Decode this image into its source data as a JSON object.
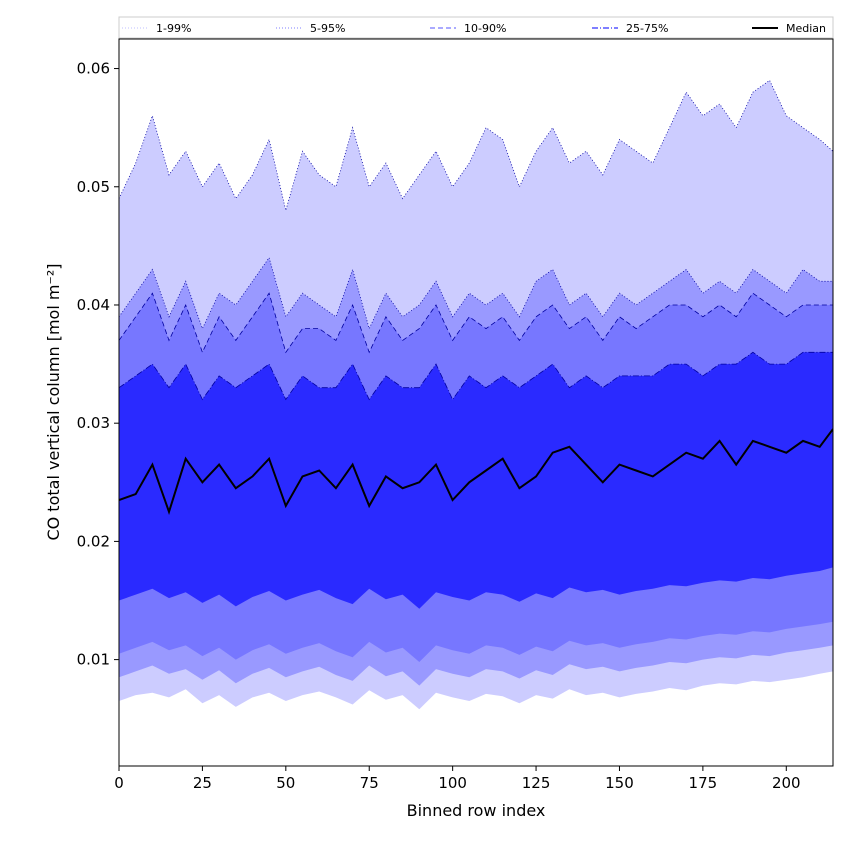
{
  "chart_data": {
    "type": "area",
    "title": "",
    "xlabel": "Binned row index",
    "ylabel": "CO total vertical column [mol m⁻²]",
    "xlim": [
      0,
      214
    ],
    "ylim": [
      0.001,
      0.0625
    ],
    "x_ticks": [
      0,
      25,
      50,
      75,
      100,
      125,
      150,
      175,
      200
    ],
    "x_tick_labels": [
      "0",
      "25",
      "50",
      "75",
      "100",
      "125",
      "150",
      "175",
      "200"
    ],
    "y_ticks": [
      0.01,
      0.02,
      0.03,
      0.04,
      0.05,
      0.06
    ],
    "y_tick_labels": [
      "0.01",
      "0.02",
      "0.03",
      "0.04",
      "0.05",
      "0.06"
    ],
    "legend_position": "top",
    "legend": [
      {
        "label": "1-99%",
        "style": "dotted-thin"
      },
      {
        "label": "5-95%",
        "style": "dotted"
      },
      {
        "label": "10-90%",
        "style": "dashed"
      },
      {
        "label": "25-75%",
        "style": "dash-dot"
      },
      {
        "label": "Median",
        "style": "solid-black"
      }
    ],
    "x_step": 5,
    "bands": [
      {
        "name": "1-99%",
        "color": "#ccccff",
        "lower": [
          0.0065,
          0.007,
          0.0072,
          0.0068,
          0.0075,
          0.0063,
          0.007,
          0.006,
          0.0068,
          0.0072,
          0.0065,
          0.007,
          0.0073,
          0.0068,
          0.0062,
          0.0074,
          0.0066,
          0.007,
          0.0058,
          0.0072,
          0.0068,
          0.0065,
          0.0071,
          0.0069,
          0.0063,
          0.007,
          0.0067,
          0.0075,
          0.007,
          0.0072,
          0.0068,
          0.0071,
          0.0073,
          0.0076,
          0.0074,
          0.0078,
          0.008,
          0.0079,
          0.0082,
          0.0081,
          0.0083,
          0.0085,
          0.0088,
          0.009
        ],
        "upper": [
          0.049,
          0.052,
          0.056,
          0.051,
          0.053,
          0.05,
          0.052,
          0.049,
          0.051,
          0.054,
          0.048,
          0.053,
          0.051,
          0.05,
          0.055,
          0.05,
          0.052,
          0.049,
          0.051,
          0.053,
          0.05,
          0.052,
          0.055,
          0.054,
          0.05,
          0.053,
          0.055,
          0.052,
          0.053,
          0.051,
          0.054,
          0.053,
          0.052,
          0.055,
          0.058,
          0.056,
          0.057,
          0.055,
          0.058,
          0.059,
          0.056,
          0.055,
          0.054,
          0.053
        ]
      },
      {
        "name": "5-95%",
        "color": "#9999ff",
        "lower": [
          0.0085,
          0.009,
          0.0095,
          0.0088,
          0.0092,
          0.0083,
          0.0091,
          0.008,
          0.0088,
          0.0093,
          0.0085,
          0.009,
          0.0094,
          0.0087,
          0.0082,
          0.0095,
          0.0086,
          0.009,
          0.0078,
          0.0092,
          0.0088,
          0.0085,
          0.0092,
          0.009,
          0.0084,
          0.0091,
          0.0087,
          0.0096,
          0.0092,
          0.0094,
          0.009,
          0.0093,
          0.0095,
          0.0098,
          0.0097,
          0.01,
          0.0102,
          0.0101,
          0.0104,
          0.0103,
          0.0106,
          0.0108,
          0.011,
          0.0112
        ],
        "upper": [
          0.039,
          0.041,
          0.043,
          0.039,
          0.042,
          0.038,
          0.041,
          0.04,
          0.042,
          0.044,
          0.039,
          0.041,
          0.04,
          0.039,
          0.043,
          0.038,
          0.041,
          0.039,
          0.04,
          0.042,
          0.039,
          0.041,
          0.04,
          0.041,
          0.039,
          0.042,
          0.043,
          0.04,
          0.041,
          0.039,
          0.041,
          0.04,
          0.041,
          0.042,
          0.043,
          0.041,
          0.042,
          0.041,
          0.043,
          0.042,
          0.041,
          0.043,
          0.042,
          0.042
        ]
      },
      {
        "name": "10-90%",
        "color": "#7777ff",
        "lower": [
          0.0105,
          0.011,
          0.0115,
          0.0108,
          0.0112,
          0.0103,
          0.011,
          0.01,
          0.0108,
          0.0113,
          0.0105,
          0.011,
          0.0114,
          0.0107,
          0.0102,
          0.0115,
          0.0106,
          0.011,
          0.0098,
          0.0112,
          0.0108,
          0.0105,
          0.0112,
          0.011,
          0.0104,
          0.0111,
          0.0107,
          0.0116,
          0.0112,
          0.0114,
          0.011,
          0.0113,
          0.0115,
          0.0118,
          0.0117,
          0.012,
          0.0122,
          0.0121,
          0.0124,
          0.0123,
          0.0126,
          0.0128,
          0.013,
          0.0132
        ],
        "upper": [
          0.037,
          0.039,
          0.041,
          0.037,
          0.04,
          0.036,
          0.039,
          0.037,
          0.039,
          0.041,
          0.036,
          0.038,
          0.038,
          0.037,
          0.04,
          0.036,
          0.039,
          0.037,
          0.038,
          0.04,
          0.037,
          0.039,
          0.038,
          0.039,
          0.037,
          0.039,
          0.04,
          0.038,
          0.039,
          0.037,
          0.039,
          0.038,
          0.039,
          0.04,
          0.04,
          0.039,
          0.04,
          0.039,
          0.041,
          0.04,
          0.039,
          0.04,
          0.04,
          0.04
        ]
      },
      {
        "name": "25-75%",
        "color": "#2a2aff",
        "lower": [
          0.015,
          0.0155,
          0.016,
          0.0152,
          0.0157,
          0.0148,
          0.0155,
          0.0145,
          0.0153,
          0.0158,
          0.015,
          0.0155,
          0.0159,
          0.0152,
          0.0147,
          0.016,
          0.0151,
          0.0155,
          0.0143,
          0.0157,
          0.0153,
          0.015,
          0.0157,
          0.0155,
          0.0149,
          0.0156,
          0.0152,
          0.0161,
          0.0157,
          0.0159,
          0.0155,
          0.0158,
          0.016,
          0.0163,
          0.0162,
          0.0165,
          0.0167,
          0.0166,
          0.0169,
          0.0168,
          0.0171,
          0.0173,
          0.0175,
          0.0178
        ],
        "upper": [
          0.033,
          0.034,
          0.035,
          0.033,
          0.035,
          0.032,
          0.034,
          0.033,
          0.034,
          0.035,
          0.032,
          0.034,
          0.033,
          0.033,
          0.035,
          0.032,
          0.034,
          0.033,
          0.033,
          0.035,
          0.032,
          0.034,
          0.033,
          0.034,
          0.033,
          0.034,
          0.035,
          0.033,
          0.034,
          0.033,
          0.034,
          0.034,
          0.034,
          0.035,
          0.035,
          0.034,
          0.035,
          0.035,
          0.036,
          0.035,
          0.035,
          0.036,
          0.036,
          0.036
        ]
      }
    ],
    "median": [
      0.0235,
      0.024,
      0.0265,
      0.0225,
      0.027,
      0.025,
      0.0265,
      0.0245,
      0.0255,
      0.027,
      0.023,
      0.0255,
      0.026,
      0.0245,
      0.0265,
      0.023,
      0.0255,
      0.0245,
      0.025,
      0.0265,
      0.0235,
      0.025,
      0.026,
      0.027,
      0.0245,
      0.0255,
      0.0275,
      0.028,
      0.0265,
      0.025,
      0.0265,
      0.026,
      0.0255,
      0.0265,
      0.0275,
      0.027,
      0.0285,
      0.0265,
      0.0285,
      0.028,
      0.0275,
      0.0285,
      0.028,
      0.0295
    ]
  }
}
